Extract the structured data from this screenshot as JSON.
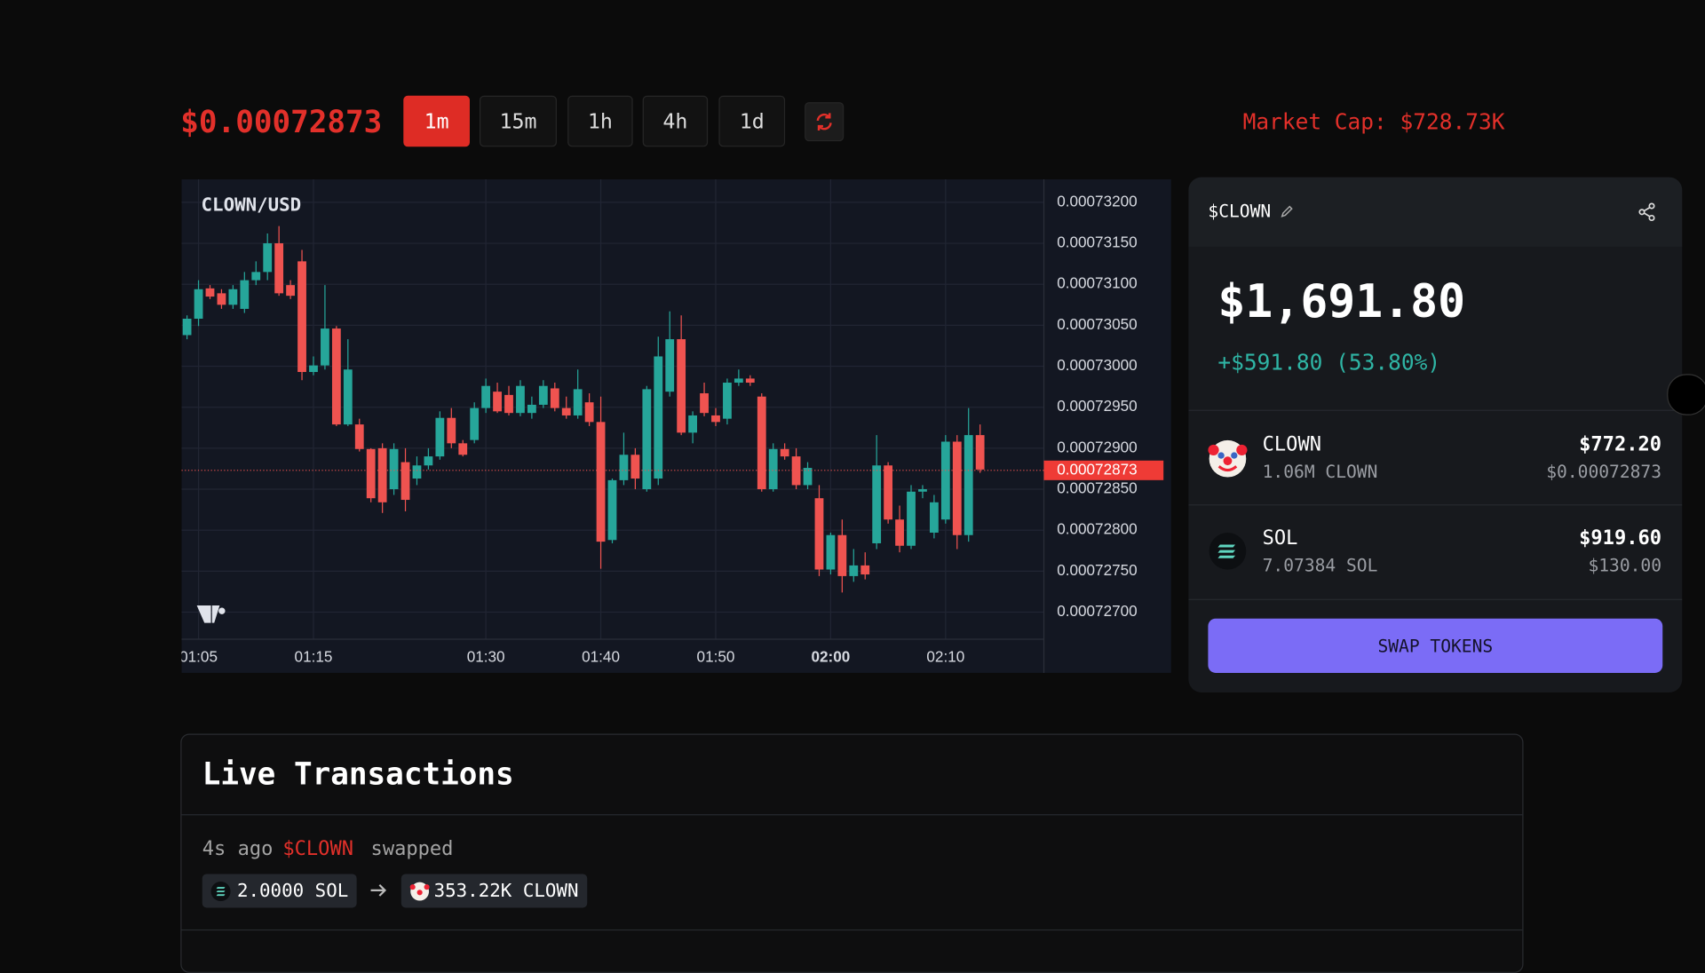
{
  "header": {
    "price": "$0.00072873",
    "intervals": [
      "1m",
      "15m",
      "1h",
      "4h",
      "1d"
    ],
    "active_interval": "1m",
    "market_cap": "Market Cap: $728.73K"
  },
  "chart_data": {
    "type": "candlestick",
    "title": "CLOWN/USD",
    "x": [
      "01:04",
      "01:05",
      "01:06",
      "01:07",
      "01:08",
      "01:09",
      "01:10",
      "01:11",
      "01:12",
      "01:13",
      "01:14",
      "01:15",
      "01:16",
      "01:17",
      "01:18",
      "01:19",
      "01:20",
      "01:21",
      "01:22",
      "01:23",
      "01:24",
      "01:25",
      "01:26",
      "01:27",
      "01:28",
      "01:29",
      "01:30",
      "01:31",
      "01:32",
      "01:33",
      "01:34",
      "01:35",
      "01:36",
      "01:37",
      "01:38",
      "01:39",
      "01:40",
      "01:41",
      "01:42",
      "01:43",
      "01:44",
      "01:45",
      "01:46",
      "01:47",
      "01:48",
      "01:49",
      "01:50",
      "01:51",
      "01:52",
      "01:53",
      "01:54",
      "01:55",
      "01:56",
      "01:57",
      "01:58",
      "01:59",
      "02:00",
      "02:01",
      "02:02",
      "02:03",
      "02:04",
      "02:05",
      "02:06",
      "02:07",
      "02:08",
      "02:09",
      "02:10",
      "02:11",
      "02:12",
      "02:13"
    ],
    "open": [
      0.00073038,
      0.00073058,
      0.00073095,
      0.00073089,
      0.00073075,
      0.0007307,
      0.00073105,
      0.00073115,
      0.0007315,
      0.00073099,
      0.00073128,
      0.00072993,
      0.00073001,
      0.00073046,
      0.00072929,
      0.00072929,
      0.00072899,
      0.000729,
      0.0007285,
      0.00072883,
      0.00072863,
      0.00072879,
      0.0007289,
      0.00072937,
      0.00072906,
      0.0007291,
      0.00072949,
      0.00072969,
      0.00072965,
      0.00072943,
      0.00072943,
      0.00072953,
      0.00072973,
      0.00072949,
      0.0007294,
      0.00072956,
      0.00072932,
      0.00072788,
      0.00072861,
      0.00072892,
      0.0007285,
      0.00072863,
      0.00072969,
      0.00073033,
      0.00072919,
      0.00072967,
      0.0007294,
      0.00072936,
      0.0007298,
      0.00072985,
      0.00072963,
      0.0007285,
      0.00072899,
      0.0007289,
      0.00072855,
      0.00072839,
      0.00072752,
      0.00072794,
      0.00072744,
      0.00072757,
      0.00072784,
      0.00072879,
      0.00072813,
      0.00072781,
      0.00072847,
      0.00072797,
      0.00072813,
      0.00072908,
      0.00072794,
      0.00072916
    ],
    "high": [
      0.00073062,
      0.00073105,
      0.00073099,
      0.00073094,
      0.00073099,
      0.00073115,
      0.00073128,
      0.00073162,
      0.00073171,
      0.00073105,
      0.00073142,
      0.00073012,
      0.00073099,
      0.00073049,
      0.00073033,
      0.00072936,
      0.000729,
      0.00072906,
      0.00072906,
      0.000729,
      0.0007289,
      0.000729,
      0.00072945,
      0.00072949,
      0.0007291,
      0.00072956,
      0.00072985,
      0.0007298,
      0.00072976,
      0.00072983,
      0.00072963,
      0.00072983,
      0.0007298,
      0.00072963,
      0.00072996,
      0.00072967,
      0.00072963,
      0.00072863,
      0.00072919,
      0.000729,
      0.00072976,
      0.00073036,
      0.00073067,
      0.00073062,
      0.00072945,
      0.0007298,
      0.00072949,
      0.00072985,
      0.00072996,
      0.00072989,
      0.00072967,
      0.00072906,
      0.00072906,
      0.000729,
      0.00072883,
      0.00072855,
      0.00072797,
      0.00072813,
      0.00072777,
      0.00072773,
      0.00072916,
      0.00072883,
      0.0007283,
      0.00072855,
      0.00072855,
      0.00072843,
      0.00072916,
      0.00072916,
      0.00072949,
      0.00072929
    ],
    "low": [
      0.00073033,
      0.00073049,
      0.00073082,
      0.0007307,
      0.0007307,
      0.00073065,
      0.00073099,
      0.00073105,
      0.00073086,
      0.00073082,
      0.00072983,
      0.00072989,
      0.00072996,
      0.00072927,
      0.00072927,
      0.00072896,
      0.00072834,
      0.00072821,
      0.00072843,
      0.00072823,
      0.00072855,
      0.00072874,
      0.00072886,
      0.000729,
      0.0007289,
      0.00072906,
      0.00072943,
      0.00072943,
      0.0007294,
      0.00072939,
      0.00072936,
      0.00072949,
      0.00072945,
      0.00072936,
      0.00072936,
      0.00072927,
      0.00072753,
      0.00072784,
      0.00072855,
      0.0007285,
      0.00072847,
      0.00072855,
      0.00072963,
      0.00072916,
      0.00072906,
      0.00072939,
      0.00072927,
      0.00072929,
      0.00072976,
      0.00072976,
      0.00072847,
      0.00072847,
      0.00072886,
      0.0007285,
      0.0007285,
      0.00072744,
      0.00072746,
      0.00072724,
      0.00072737,
      0.0007274,
      0.00072777,
      0.00072808,
      0.00072773,
      0.00072777,
      0.00072839,
      0.0007279,
      0.00072808,
      0.00072777,
      0.00072786,
      0.0007287
    ],
    "close": [
      0.00073058,
      0.00073094,
      0.00073085,
      0.00073075,
      0.00073094,
      0.00073105,
      0.00073115,
      0.0007315,
      0.00073089,
      0.00073086,
      0.00072993,
      0.00073001,
      0.00073046,
      0.00072929,
      0.00072996,
      0.00072899,
      0.00072839,
      0.00072834,
      0.00072899,
      0.00072837,
      0.00072879,
      0.0007289,
      0.00072937,
      0.00072906,
      0.00072892,
      0.00072949,
      0.00072976,
      0.00072945,
      0.00072943,
      0.00072976,
      0.00072953,
      0.00072976,
      0.00072949,
      0.0007294,
      0.00072972,
      0.00072932,
      0.00072786,
      0.00072861,
      0.00072892,
      0.00072863,
      0.00072972,
      0.00073012,
      0.00073033,
      0.00072919,
      0.0007294,
      0.00072943,
      0.00072932,
      0.0007298,
      0.00072985,
      0.0007298,
      0.0007285,
      0.00072899,
      0.0007289,
      0.00072855,
      0.00072876,
      0.00072752,
      0.00072794,
      0.00072744,
      0.00072757,
      0.00072746,
      0.00072879,
      0.00072813,
      0.00072781,
      0.00072847,
      0.0007285,
      0.00072834,
      0.00072908,
      0.00072794,
      0.00072916,
      0.00072874
    ],
    "up_color": "#26a69a",
    "down_color": "#ef5350",
    "ylim": [
      0.00072667,
      0.00073228
    ],
    "yticks": [
      {
        "value": 0.000732,
        "label": "0.00073200"
      },
      {
        "value": 0.0007315,
        "label": "0.00073150"
      },
      {
        "value": 0.000731,
        "label": "0.00073100"
      },
      {
        "value": 0.0007305,
        "label": "0.00073050"
      },
      {
        "value": 0.00073,
        "label": "0.00073000"
      },
      {
        "value": 0.0007295,
        "label": "0.00072950"
      },
      {
        "value": 0.000729,
        "label": "0.00072900"
      },
      {
        "value": 0.0007285,
        "label": "0.00072850"
      },
      {
        "value": 0.000728,
        "label": "0.00072800"
      },
      {
        "value": 0.0007275,
        "label": "0.00072750"
      },
      {
        "value": 0.000727,
        "label": "0.00072700"
      }
    ],
    "xticks": [
      "01:05",
      "01:15",
      "01:30",
      "01:40",
      "01:50",
      "02:00",
      "02:10"
    ],
    "last_price": {
      "value": 0.00072873,
      "label": "0.00072873"
    },
    "grid": true
  },
  "swap": {
    "token": "$CLOWN",
    "balance": "$1,691.80",
    "change": "+$591.80 (53.80%)",
    "holdings": [
      {
        "name": "CLOWN",
        "amount": "1.06M CLOWN",
        "value": "$772.20",
        "price": "$0.00072873"
      },
      {
        "name": "SOL",
        "amount": "7.07384 SOL",
        "value": "$919.60",
        "price": "$130.00"
      }
    ],
    "button": "SWAP TOKENS"
  },
  "transactions": {
    "title": "Live Transactions",
    "items": [
      {
        "time": "4s ago",
        "token": "$CLOWN",
        "action": "swapped",
        "from": "2.0000 SOL",
        "to": "353.22K CLOWN"
      }
    ]
  }
}
